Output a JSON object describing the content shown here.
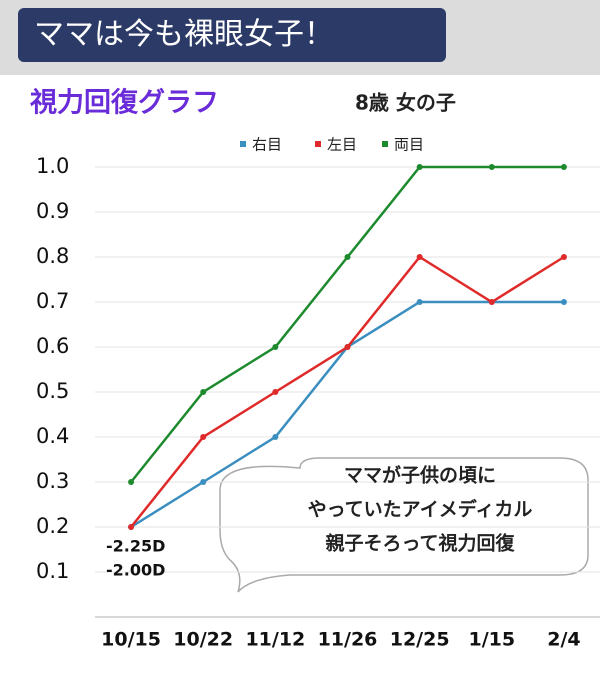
{
  "banner": "ママは今も裸眼女子！",
  "chart_data": {
    "type": "line",
    "title": "視力回復グラフ",
    "subtitle": "8歳 女の子",
    "categories": [
      "10/15",
      "10/22",
      "11/12",
      "11/26",
      "12/25",
      "1/15",
      "2/4"
    ],
    "series": [
      {
        "name": "右目",
        "color": "#3a8fc0",
        "values": [
          0.2,
          0.3,
          0.4,
          0.6,
          0.7,
          0.7,
          0.7
        ]
      },
      {
        "name": "左目",
        "color": "#e02a2a",
        "values": [
          0.2,
          0.4,
          0.5,
          0.6,
          0.8,
          0.7,
          0.8
        ]
      },
      {
        "name": "両目",
        "color": "#1e8a2e",
        "values": [
          0.3,
          0.5,
          0.6,
          0.8,
          1.0,
          1.0,
          1.0
        ]
      }
    ],
    "ylim": [
      0,
      1
    ],
    "yticks": [
      0.1,
      0.2,
      0.3,
      0.4,
      0.5,
      0.6,
      0.7,
      0.8,
      0.9,
      {
        "value": 1,
        "label": "1.0"
      }
    ],
    "grid": true,
    "annotations": [
      "-2.25D",
      "-2.00D"
    ],
    "callout": [
      "ママが子供の頃に",
      "やっていたアイメディカル",
      "親子そろって視力回復"
    ]
  }
}
